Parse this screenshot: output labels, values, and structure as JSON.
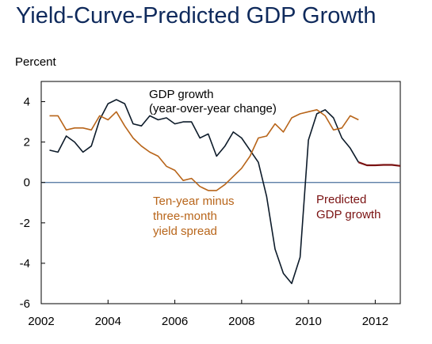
{
  "chart_data": {
    "type": "line",
    "title": "Yield-Curve-Predicted GDP Growth",
    "ylabel": "Percent",
    "xlabel": "",
    "xlim": [
      2002,
      2012.75
    ],
    "ylim": [
      -6,
      5
    ],
    "x_ticks": [
      2002,
      2004,
      2006,
      2008,
      2010,
      2012
    ],
    "y_ticks": [
      -6,
      -4,
      -2,
      0,
      2,
      4
    ],
    "grid": false,
    "legend": "inline labels",
    "series": [
      {
        "name": "GDP growth (year-over-year change)",
        "color": "#0d1b2a",
        "label_lines": [
          "GDP growth",
          "(year-over-year change)"
        ],
        "x": [
          2002.25,
          2002.5,
          2002.75,
          2003.0,
          2003.25,
          2003.5,
          2003.75,
          2004.0,
          2004.25,
          2004.5,
          2004.75,
          2005.0,
          2005.25,
          2005.5,
          2005.75,
          2006.0,
          2006.25,
          2006.5,
          2006.75,
          2007.0,
          2007.25,
          2007.5,
          2007.75,
          2008.0,
          2008.25,
          2008.5,
          2008.75,
          2009.0,
          2009.25,
          2009.5,
          2009.75,
          2010.0,
          2010.25,
          2010.5,
          2010.75,
          2011.0,
          2011.25,
          2011.5
        ],
        "values": [
          1.6,
          1.5,
          2.3,
          2.0,
          1.5,
          1.8,
          3.1,
          3.9,
          4.1,
          3.9,
          2.9,
          2.8,
          3.3,
          3.1,
          3.2,
          2.9,
          3.0,
          3.0,
          2.2,
          2.4,
          1.3,
          1.8,
          2.5,
          2.2,
          1.6,
          1.0,
          -0.7,
          -3.3,
          -4.5,
          -5.0,
          -3.7,
          2.1,
          3.4,
          3.6,
          3.2,
          2.2,
          1.7,
          1.0
        ]
      },
      {
        "name": "Ten-year minus three-month yield spread",
        "color": "#b8651a",
        "label_lines": [
          "Ten-year minus",
          "three-month",
          "yield spread"
        ],
        "x": [
          2002.25,
          2002.5,
          2002.75,
          2003.0,
          2003.25,
          2003.5,
          2003.75,
          2004.0,
          2004.25,
          2004.5,
          2004.75,
          2005.0,
          2005.25,
          2005.5,
          2005.75,
          2006.0,
          2006.25,
          2006.5,
          2006.75,
          2007.0,
          2007.25,
          2007.5,
          2007.75,
          2008.0,
          2008.25,
          2008.5,
          2008.75,
          2009.0,
          2009.25,
          2009.5,
          2009.75,
          2010.0,
          2010.25,
          2010.5,
          2010.75,
          2011.0,
          2011.25,
          2011.5
        ],
        "values": [
          3.3,
          3.3,
          2.6,
          2.7,
          2.7,
          2.6,
          3.3,
          3.1,
          3.5,
          2.8,
          2.2,
          1.8,
          1.5,
          1.3,
          0.8,
          0.6,
          0.1,
          0.2,
          -0.2,
          -0.4,
          -0.4,
          -0.1,
          0.3,
          0.7,
          1.3,
          2.2,
          2.3,
          2.9,
          2.5,
          3.2,
          3.4,
          3.5,
          3.6,
          3.3,
          2.6,
          2.7,
          3.3,
          3.1
        ]
      },
      {
        "name": "Predicted GDP growth",
        "color": "#7a1212",
        "label_lines": [
          "Predicted",
          "GDP growth"
        ],
        "x": [
          2011.5,
          2011.75,
          2012.0,
          2012.25,
          2012.5,
          2012.75
        ],
        "values": [
          1.0,
          0.85,
          0.85,
          0.87,
          0.87,
          0.82
        ]
      }
    ]
  }
}
